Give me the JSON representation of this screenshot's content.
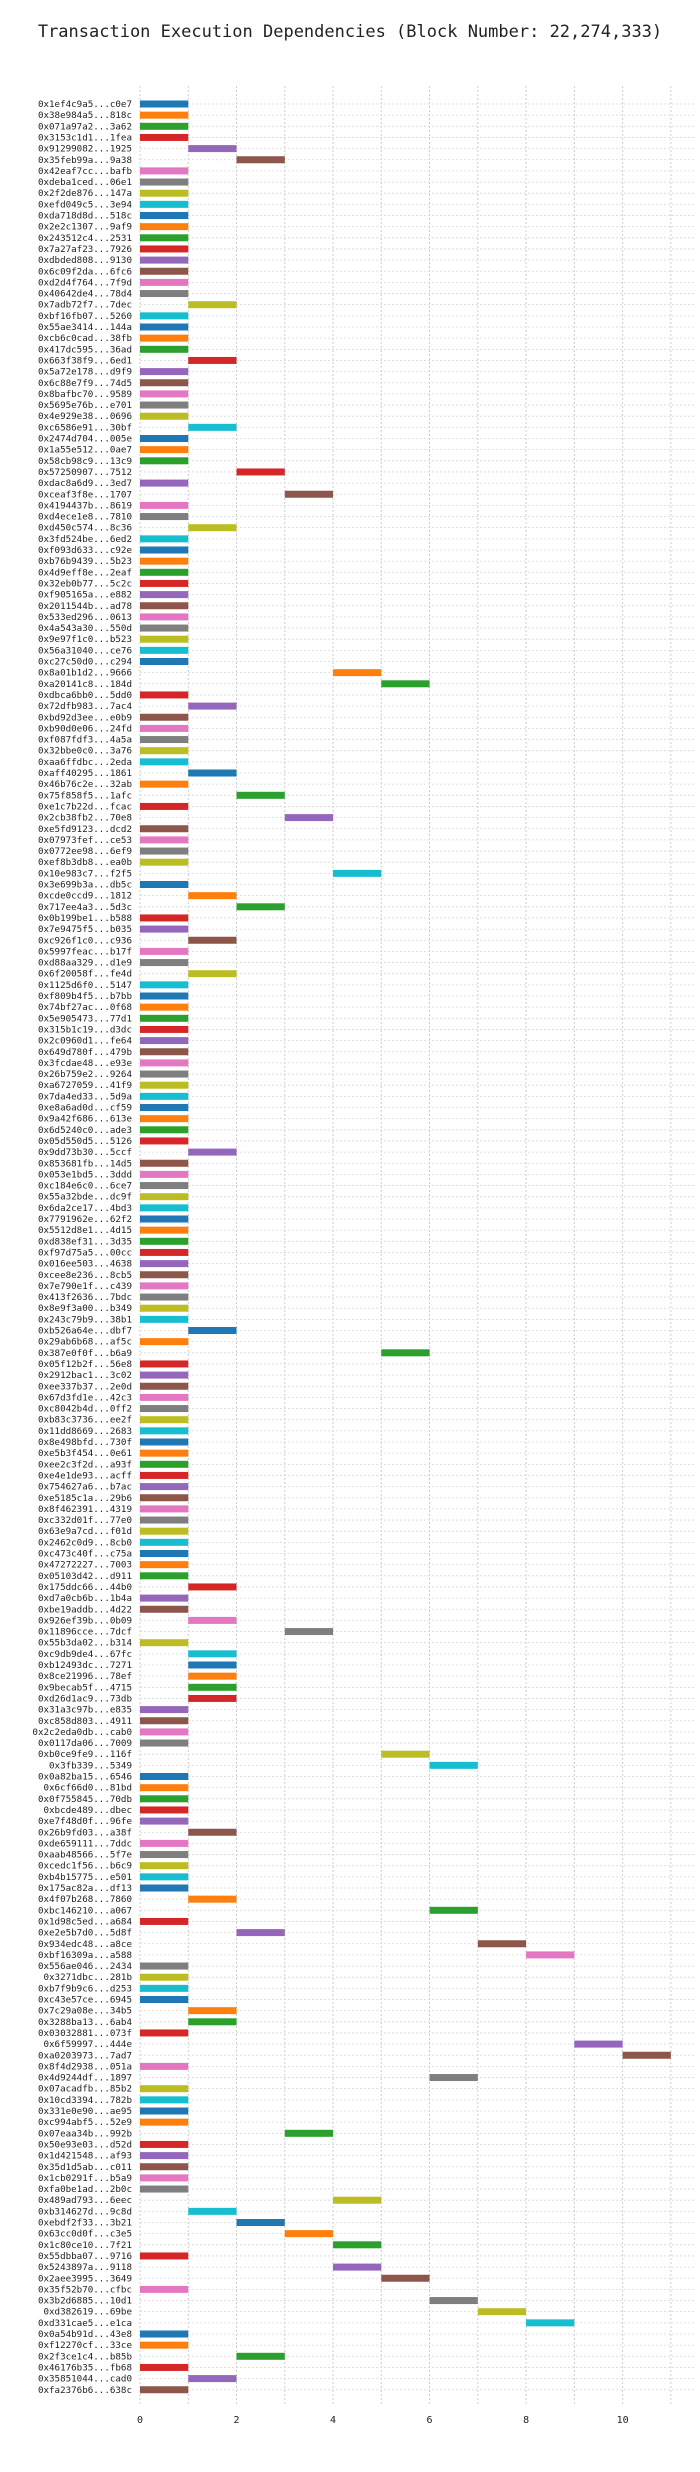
{
  "chart_data": {
    "type": "bar",
    "orientation": "horizontal",
    "title": "Transaction Execution Dependencies (Block Number: 22,274,333)",
    "xlabel": "",
    "ylabel": "",
    "xlim": [
      0,
      11.5
    ],
    "xticks": [
      0,
      2,
      4,
      6,
      8,
      10
    ],
    "grid": true,
    "legend": "none",
    "palette": [
      "#1f77b4",
      "#ff7f0e",
      "#2ca02c",
      "#d62728",
      "#9467bd",
      "#8c564b",
      "#e377c2",
      "#7f7f7f",
      "#bcbd22",
      "#17becf"
    ],
    "transactions": [
      {
        "label": "0x1ef4c9a5...c0e7",
        "start": 0,
        "end": 1
      },
      {
        "label": "0x38e984a5...818c",
        "start": 0,
        "end": 1
      },
      {
        "label": "0x071a97a2...3a62",
        "start": 0,
        "end": 1
      },
      {
        "label": "0x3153c1d1...1fea",
        "start": 0,
        "end": 1
      },
      {
        "label": "0x91299082...1925",
        "start": 1,
        "end": 2
      },
      {
        "label": "0x35feb99a...9a38",
        "start": 2,
        "end": 3
      },
      {
        "label": "0x42eaf7cc...bafb",
        "start": 0,
        "end": 1
      },
      {
        "label": "0xdeba1ced...06e1",
        "start": 0,
        "end": 1
      },
      {
        "label": "0x2f2de876...147a",
        "start": 0,
        "end": 1
      },
      {
        "label": "0xefd049c5...3e94",
        "start": 0,
        "end": 1
      },
      {
        "label": "0xda718d8d...518c",
        "start": 0,
        "end": 1
      },
      {
        "label": "0x2e2c1307...9af9",
        "start": 0,
        "end": 1
      },
      {
        "label": "0x243512c4...2531",
        "start": 0,
        "end": 1
      },
      {
        "label": "0x7a27af23...7926",
        "start": 0,
        "end": 1
      },
      {
        "label": "0xdbded808...9130",
        "start": 0,
        "end": 1
      },
      {
        "label": "0x6c09f2da...6fc6",
        "start": 0,
        "end": 1
      },
      {
        "label": "0xd2d4f764...7f9d",
        "start": 0,
        "end": 1
      },
      {
        "label": "0x40642de4...78d4",
        "start": 0,
        "end": 1
      },
      {
        "label": "0x7adb72f7...7dec",
        "start": 1,
        "end": 2
      },
      {
        "label": "0xbf16fb07...5260",
        "start": 0,
        "end": 1
      },
      {
        "label": "0x55ae3414...144a",
        "start": 0,
        "end": 1
      },
      {
        "label": "0xcb6c0cad...38fb",
        "start": 0,
        "end": 1
      },
      {
        "label": "0x417dc595...36ad",
        "start": 0,
        "end": 1
      },
      {
        "label": "0x663f38f9...6ed1",
        "start": 1,
        "end": 2
      },
      {
        "label": "0x5a72e178...d9f9",
        "start": 0,
        "end": 1
      },
      {
        "label": "0x6c88e7f9...74d5",
        "start": 0,
        "end": 1
      },
      {
        "label": "0x8bafbc70...9589",
        "start": 0,
        "end": 1
      },
      {
        "label": "0x5695e76b...e701",
        "start": 0,
        "end": 1
      },
      {
        "label": "0x4e929e38...0696",
        "start": 0,
        "end": 1
      },
      {
        "label": "0xc6586e91...30bf",
        "start": 1,
        "end": 2
      },
      {
        "label": "0x2474d704...005e",
        "start": 0,
        "end": 1
      },
      {
        "label": "0x1a55e512...0ae7",
        "start": 0,
        "end": 1
      },
      {
        "label": "0x58cb98c9...13c9",
        "start": 0,
        "end": 1
      },
      {
        "label": "0x57250907...7512",
        "start": 2,
        "end": 3
      },
      {
        "label": "0xdac8a6d9...3ed7",
        "start": 0,
        "end": 1
      },
      {
        "label": "0xceaf3f8e...1707",
        "start": 3,
        "end": 4
      },
      {
        "label": "0x4194437b...8619",
        "start": 0,
        "end": 1
      },
      {
        "label": "0xd4ece1e8...7810",
        "start": 0,
        "end": 1
      },
      {
        "label": "0xd450c574...8c36",
        "start": 1,
        "end": 2
      },
      {
        "label": "0x3fd524be...6ed2",
        "start": 0,
        "end": 1
      },
      {
        "label": "0xf093d633...c92e",
        "start": 0,
        "end": 1
      },
      {
        "label": "0xb76b9439...5b23",
        "start": 0,
        "end": 1
      },
      {
        "label": "0x4d9eff8e...2eaf",
        "start": 0,
        "end": 1
      },
      {
        "label": "0x32eb0b77...5c2c",
        "start": 0,
        "end": 1
      },
      {
        "label": "0xf905165a...e882",
        "start": 0,
        "end": 1
      },
      {
        "label": "0x2011544b...ad78",
        "start": 0,
        "end": 1
      },
      {
        "label": "0x533ed296...0613",
        "start": 0,
        "end": 1
      },
      {
        "label": "0x4a543a30...550d",
        "start": 0,
        "end": 1
      },
      {
        "label": "0x9e97f1c0...b523",
        "start": 0,
        "end": 1
      },
      {
        "label": "0x56a31040...ce76",
        "start": 0,
        "end": 1
      },
      {
        "label": "0xc27c50d0...c294",
        "start": 0,
        "end": 1
      },
      {
        "label": "0x8a01b1d2...9666",
        "start": 4,
        "end": 5
      },
      {
        "label": "0xa20141c8...184d",
        "start": 5,
        "end": 6
      },
      {
        "label": "0xdbca6bb0...5dd0",
        "start": 0,
        "end": 1
      },
      {
        "label": "0x72dfb983...7ac4",
        "start": 1,
        "end": 2
      },
      {
        "label": "0xbd92d3ee...e0b9",
        "start": 0,
        "end": 1
      },
      {
        "label": "0xb90d0e06...24fd",
        "start": 0,
        "end": 1
      },
      {
        "label": "0xf087fdf3...4a5a",
        "start": 0,
        "end": 1
      },
      {
        "label": "0x32bbe0c0...3a76",
        "start": 0,
        "end": 1
      },
      {
        "label": "0xaa6ffdbc...2eda",
        "start": 0,
        "end": 1
      },
      {
        "label": "0xaff40295...1861",
        "start": 1,
        "end": 2
      },
      {
        "label": "0x46b76c2e...32ab",
        "start": 0,
        "end": 1
      },
      {
        "label": "0x75f858f5...1afc",
        "start": 2,
        "end": 3
      },
      {
        "label": "0xe1c7b22d...fcac",
        "start": 0,
        "end": 1
      },
      {
        "label": "0x2cb38fb2...70e8",
        "start": 3,
        "end": 4
      },
      {
        "label": "0xe5fd9123...dcd2",
        "start": 0,
        "end": 1
      },
      {
        "label": "0x07973fef...ce53",
        "start": 0,
        "end": 1
      },
      {
        "label": "0x0772ee98...6ef9",
        "start": 0,
        "end": 1
      },
      {
        "label": "0xef8b3db8...ea0b",
        "start": 0,
        "end": 1
      },
      {
        "label": "0x10e983c7...f2f5",
        "start": 4,
        "end": 5
      },
      {
        "label": "0x3e699b3a...db5c",
        "start": 0,
        "end": 1
      },
      {
        "label": "0xcde0ccd9...1812",
        "start": 1,
        "end": 2
      },
      {
        "label": "0x717ee4a3...5d3c",
        "start": 2,
        "end": 3
      },
      {
        "label": "0x0b199be1...b588",
        "start": 0,
        "end": 1
      },
      {
        "label": "0x7e9475f5...b035",
        "start": 0,
        "end": 1
      },
      {
        "label": "0xc926f1c0...c936",
        "start": 1,
        "end": 2
      },
      {
        "label": "0x5997feac...b17f",
        "start": 0,
        "end": 1
      },
      {
        "label": "0xd88aa329...d1e9",
        "start": 0,
        "end": 1
      },
      {
        "label": "0x6f20058f...fe4d",
        "start": 1,
        "end": 2
      },
      {
        "label": "0x1125d6f0...5147",
        "start": 0,
        "end": 1
      },
      {
        "label": "0xf809b4f5...b7bb",
        "start": 0,
        "end": 1
      },
      {
        "label": "0x74bf27ac...0f68",
        "start": 0,
        "end": 1
      },
      {
        "label": "0x5e905473...77d1",
        "start": 0,
        "end": 1
      },
      {
        "label": "0x315b1c19...d3dc",
        "start": 0,
        "end": 1
      },
      {
        "label": "0x2c0960d1...fe64",
        "start": 0,
        "end": 1
      },
      {
        "label": "0x649d780f...479b",
        "start": 0,
        "end": 1
      },
      {
        "label": "0x3fcdae48...e93e",
        "start": 0,
        "end": 1
      },
      {
        "label": "0x26b759e2...9264",
        "start": 0,
        "end": 1
      },
      {
        "label": "0xa6727059...41f9",
        "start": 0,
        "end": 1
      },
      {
        "label": "0x7da4ed33...5d9a",
        "start": 0,
        "end": 1
      },
      {
        "label": "0xe8a6ad0d...cf59",
        "start": 0,
        "end": 1
      },
      {
        "label": "0x9a42f686...613e",
        "start": 0,
        "end": 1
      },
      {
        "label": "0x6d5240c0...ade3",
        "start": 0,
        "end": 1
      },
      {
        "label": "0x05d550d5...5126",
        "start": 0,
        "end": 1
      },
      {
        "label": "0x9dd73b30...5ccf",
        "start": 1,
        "end": 2
      },
      {
        "label": "0x853681fb...14d5",
        "start": 0,
        "end": 1
      },
      {
        "label": "0x053e1bd5...3ddd",
        "start": 0,
        "end": 1
      },
      {
        "label": "0xc184e6c0...6ce7",
        "start": 0,
        "end": 1
      },
      {
        "label": "0x55a32bde...dc9f",
        "start": 0,
        "end": 1
      },
      {
        "label": "0x6da2ce17...4bd3",
        "start": 0,
        "end": 1
      },
      {
        "label": "0x7791962e...62f2",
        "start": 0,
        "end": 1
      },
      {
        "label": "0x5512d8e1...4d15",
        "start": 0,
        "end": 1
      },
      {
        "label": "0xd838ef31...3d35",
        "start": 0,
        "end": 1
      },
      {
        "label": "0xf97d75a5...00cc",
        "start": 0,
        "end": 1
      },
      {
        "label": "0x016ee503...4638",
        "start": 0,
        "end": 1
      },
      {
        "label": "0xcee8e236...8cb5",
        "start": 0,
        "end": 1
      },
      {
        "label": "0x7e790e1f...c439",
        "start": 0,
        "end": 1
      },
      {
        "label": "0x413f2636...7bdc",
        "start": 0,
        "end": 1
      },
      {
        "label": "0x8e9f3a00...b349",
        "start": 0,
        "end": 1
      },
      {
        "label": "0x243c79b9...38b1",
        "start": 0,
        "end": 1
      },
      {
        "label": "0xb526a64e...dbf7",
        "start": 1,
        "end": 2
      },
      {
        "label": "0x29ab6b68...af5c",
        "start": 0,
        "end": 1
      },
      {
        "label": "0x387e0f0f...b6a9",
        "start": 5,
        "end": 6
      },
      {
        "label": "0x05f12b2f...56e8",
        "start": 0,
        "end": 1
      },
      {
        "label": "0x2912bac1...3c02",
        "start": 0,
        "end": 1
      },
      {
        "label": "0xee337b37...2e0d",
        "start": 0,
        "end": 1
      },
      {
        "label": "0x67d3fd1e...42c3",
        "start": 0,
        "end": 1
      },
      {
        "label": "0xc8042b4d...0ff2",
        "start": 0,
        "end": 1
      },
      {
        "label": "0xb83c3736...ee2f",
        "start": 0,
        "end": 1
      },
      {
        "label": "0x11dd8669...2683",
        "start": 0,
        "end": 1
      },
      {
        "label": "0x8e498bfd...730f",
        "start": 0,
        "end": 1
      },
      {
        "label": "0xe5b3f454...0e61",
        "start": 0,
        "end": 1
      },
      {
        "label": "0xee2c3f2d...a93f",
        "start": 0,
        "end": 1
      },
      {
        "label": "0xe4e1de93...acff",
        "start": 0,
        "end": 1
      },
      {
        "label": "0x754627a6...b7ac",
        "start": 0,
        "end": 1
      },
      {
        "label": "0xe5185c1a...29b6",
        "start": 0,
        "end": 1
      },
      {
        "label": "0x8f462391...4319",
        "start": 0,
        "end": 1
      },
      {
        "label": "0xc332d01f...77e0",
        "start": 0,
        "end": 1
      },
      {
        "label": "0x63e9a7cd...f01d",
        "start": 0,
        "end": 1
      },
      {
        "label": "0x2462c0d9...8cb0",
        "start": 0,
        "end": 1
      },
      {
        "label": "0xc473c40f...c75a",
        "start": 0,
        "end": 1
      },
      {
        "label": "0x47272227...7003",
        "start": 0,
        "end": 1
      },
      {
        "label": "0x05103d42...d911",
        "start": 0,
        "end": 1
      },
      {
        "label": "0x175ddc66...44b0",
        "start": 1,
        "end": 2
      },
      {
        "label": "0xd7a0cb6b...1b4a",
        "start": 0,
        "end": 1
      },
      {
        "label": "0xbe19addb...4d22",
        "start": 0,
        "end": 1
      },
      {
        "label": "0x926ef39b...0b09",
        "start": 1,
        "end": 2
      },
      {
        "label": "0x11896cce...7dcf",
        "start": 3,
        "end": 4
      },
      {
        "label": "0x55b3da02...b314",
        "start": 0,
        "end": 1
      },
      {
        "label": "0xc9db9de4...67fc",
        "start": 1,
        "end": 2
      },
      {
        "label": "0xb12493dc...7271",
        "start": 1,
        "end": 2
      },
      {
        "label": "0x8ce21996...78ef",
        "start": 1,
        "end": 2
      },
      {
        "label": "0x9becab5f...4715",
        "start": 1,
        "end": 2
      },
      {
        "label": "0xd26d1ac9...73db",
        "start": 1,
        "end": 2
      },
      {
        "label": "0x31a3c97b...e835",
        "start": 0,
        "end": 1
      },
      {
        "label": "0xc858d803...4911",
        "start": 0,
        "end": 1
      },
      {
        "label": "0x2c2eda0db...cab0",
        "start": 0,
        "end": 1
      },
      {
        "label": "0x0117da06...7009",
        "start": 0,
        "end": 1
      },
      {
        "label": "0xb0ce9fe9...116f",
        "start": 5,
        "end": 6
      },
      {
        "label": "0x3fb339...5349",
        "start": 6,
        "end": 7
      },
      {
        "label": "0x0a82ba15...6546",
        "start": 0,
        "end": 1
      },
      {
        "label": "0x6cf66d0...81bd",
        "start": 0,
        "end": 1
      },
      {
        "label": "0x0f755845...70db",
        "start": 0,
        "end": 1
      },
      {
        "label": "0xbcde489...dbec",
        "start": 0,
        "end": 1
      },
      {
        "label": "0xe7f48d0f...96fe",
        "start": 0,
        "end": 1
      },
      {
        "label": "0x26b9fd03...a38f",
        "start": 1,
        "end": 2
      },
      {
        "label": "0xde659111...7ddc",
        "start": 0,
        "end": 1
      },
      {
        "label": "0xaab48566...5f7e",
        "start": 0,
        "end": 1
      },
      {
        "label": "0xcedc1f56...b6c9",
        "start": 0,
        "end": 1
      },
      {
        "label": "0xb4b15775...e501",
        "start": 0,
        "end": 1
      },
      {
        "label": "0x175ac82a...df13",
        "start": 0,
        "end": 1
      },
      {
        "label": "0x4f07b268...7860",
        "start": 1,
        "end": 2
      },
      {
        "label": "0xbc146210...a067",
        "start": 6,
        "end": 7
      },
      {
        "label": "0x1d98c5ed...a684",
        "start": 0,
        "end": 1
      },
      {
        "label": "0xe2e5b7d0...5d8f",
        "start": 2,
        "end": 3
      },
      {
        "label": "0x934edc48...a8ce",
        "start": 7,
        "end": 8
      },
      {
        "label": "0xbf16309a...a588",
        "start": 8,
        "end": 9
      },
      {
        "label": "0x556ae046...2434",
        "start": 0,
        "end": 1
      },
      {
        "label": "0x3271dbc...281b",
        "start": 0,
        "end": 1
      },
      {
        "label": "0xb7f9b9c6...d253",
        "start": 0,
        "end": 1
      },
      {
        "label": "0xc43e57ce...6945",
        "start": 0,
        "end": 1
      },
      {
        "label": "0x7c29a08e...34b5",
        "start": 1,
        "end": 2
      },
      {
        "label": "0x3288ba13...6ab4",
        "start": 1,
        "end": 2
      },
      {
        "label": "0x03032881...073f",
        "start": 0,
        "end": 1
      },
      {
        "label": "0x6f59997...444e",
        "start": 9,
        "end": 10
      },
      {
        "label": "0xa0203973...7ad7",
        "start": 10,
        "end": 11
      },
      {
        "label": "0x8f4d2938...051a",
        "start": 0,
        "end": 1
      },
      {
        "label": "0x4d9244df...1897",
        "start": 6,
        "end": 7
      },
      {
        "label": "0x07acadfb...85b2",
        "start": 0,
        "end": 1
      },
      {
        "label": "0x10cd3394...782b",
        "start": 0,
        "end": 1
      },
      {
        "label": "0x331e0e90...ae95",
        "start": 0,
        "end": 1
      },
      {
        "label": "0xc994abf5...52e9",
        "start": 0,
        "end": 1
      },
      {
        "label": "0x07eaa34b...992b",
        "start": 3,
        "end": 4
      },
      {
        "label": "0x50e93e03...d52d",
        "start": 0,
        "end": 1
      },
      {
        "label": "0x1d421548...af93",
        "start": 0,
        "end": 1
      },
      {
        "label": "0x35d1d5ab...c011",
        "start": 0,
        "end": 1
      },
      {
        "label": "0x1cb0291f...b5a9",
        "start": 0,
        "end": 1
      },
      {
        "label": "0xfa0be1ad...2b0c",
        "start": 0,
        "end": 1
      },
      {
        "label": "0x489ad793...6eec",
        "start": 4,
        "end": 5
      },
      {
        "label": "0xb314627d...9c8d",
        "start": 1,
        "end": 2
      },
      {
        "label": "0xebdf2f33...3b21",
        "start": 2,
        "end": 3
      },
      {
        "label": "0x63cc0d0f...c3e5",
        "start": 3,
        "end": 4
      },
      {
        "label": "0x1c80ce10...7f21",
        "start": 4,
        "end": 5
      },
      {
        "label": "0x55dbba07...9716",
        "start": 0,
        "end": 1
      },
      {
        "label": "0x5243897a...9118",
        "start": 4,
        "end": 5
      },
      {
        "label": "0x2aee3995...3649",
        "start": 5,
        "end": 6
      },
      {
        "label": "0x35f52b70...cfbc",
        "start": 0,
        "end": 1
      },
      {
        "label": "0x3b2d6885...10d1",
        "start": 6,
        "end": 7
      },
      {
        "label": "0xd382619...69be",
        "start": 7,
        "end": 8
      },
      {
        "label": "0xd331cae5...e1ca",
        "start": 8,
        "end": 9
      },
      {
        "label": "0x0a54b91d...43e8",
        "start": 0,
        "end": 1
      },
      {
        "label": "0xf12270cf...33ce",
        "start": 0,
        "end": 1
      },
      {
        "label": "0x2f3ce1c4...b85b",
        "start": 2,
        "end": 3
      },
      {
        "label": "0x46176b35...fb68",
        "start": 0,
        "end": 1
      },
      {
        "label": "0x35851044...cad0",
        "start": 1,
        "end": 2
      },
      {
        "label": "0xfa2376b6...638c",
        "start": 0,
        "end": 1
      }
    ]
  }
}
